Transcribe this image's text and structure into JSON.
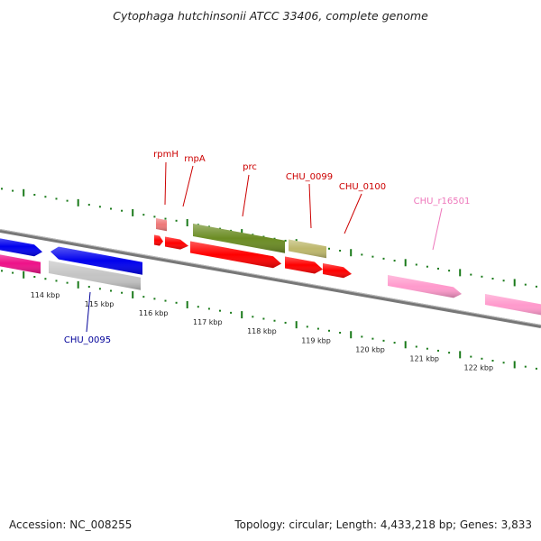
{
  "title": "Cytophaga hutchinsonii ATCC 33406, complete genome",
  "accession": "Accession: NC_008255",
  "summary": "Topology: circular; Length: 4,433,218 bp; Genes: 3,833",
  "colors": {
    "tick": "#1a7a1a",
    "backbone": "#777777",
    "label_forward": "#cc0000",
    "label_reverse": "#000099",
    "label_rrna": "#ee77bb",
    "gene_red": "#ff0000",
    "gene_pale_red": "#ee7777",
    "gene_olive": "#6b8c23",
    "gene_khaki": "#bdb76b",
    "gene_blue": "#0000ee",
    "gene_gray": "#c4c4c4",
    "gene_magenta": "#ee1188",
    "gene_pink": "#ff99cc"
  },
  "scale_labels": [
    "114 kbp",
    "115 kbp",
    "116 kbp",
    "117 kbp",
    "118 kbp",
    "119 kbp",
    "120 kbp",
    "121 kbp",
    "122 kbp"
  ],
  "gene_labels": [
    {
      "id": "rpmH",
      "text": "rpmH",
      "kind": "forward"
    },
    {
      "id": "rnpA",
      "text": "rnpA",
      "kind": "forward"
    },
    {
      "id": "prc",
      "text": "prc",
      "kind": "forward"
    },
    {
      "id": "chu-0099",
      "text": "CHU_0099",
      "kind": "forward"
    },
    {
      "id": "chu-0100",
      "text": "CHU_0100",
      "kind": "forward"
    },
    {
      "id": "chu-r16501",
      "text": "CHU_r16501",
      "kind": "rrna"
    },
    {
      "id": "chu-0095",
      "text": "CHU_0095",
      "kind": "reverse"
    }
  ]
}
